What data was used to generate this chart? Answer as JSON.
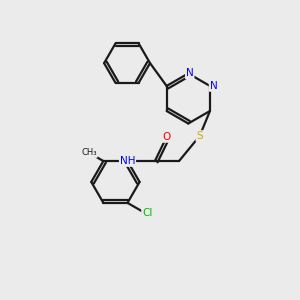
{
  "bg_color": "#ebebeb",
  "bond_color": "#1a1a1a",
  "atom_colors": {
    "N": "#0000ff",
    "O": "#ff0000",
    "S": "#ccaa00",
    "Cl": "#00bb00",
    "C": "#1a1a1a"
  },
  "lw": 1.6
}
